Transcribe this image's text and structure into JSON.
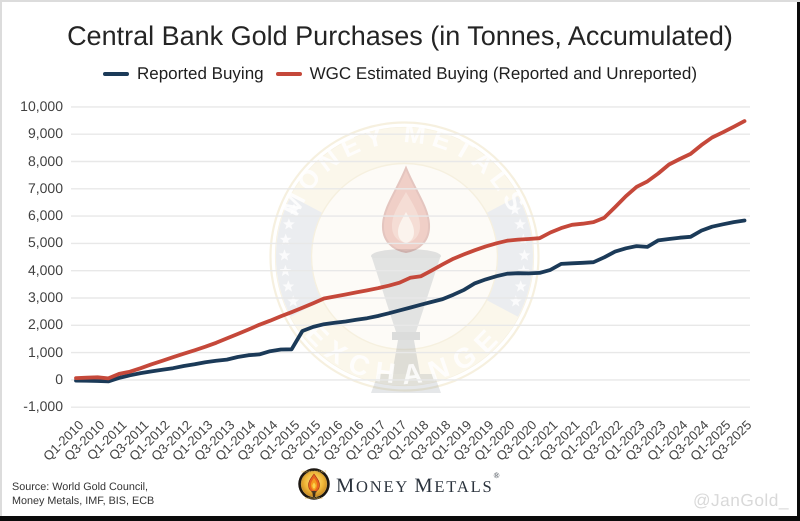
{
  "title": "Central Bank Gold Purchases (in Tonnes, Accumulated)",
  "legend": [
    {
      "label": "Reported Buying",
      "color": "#1b3a58"
    },
    {
      "label": "WGC Estimated Buying (Reported and Unreported)",
      "color": "#c5483a"
    }
  ],
  "chart_data": {
    "type": "line",
    "categories": [
      "Q1-2010",
      "Q2-2010",
      "Q3-2010",
      "Q4-2010",
      "Q1-2011",
      "Q2-2011",
      "Q3-2011",
      "Q4-2011",
      "Q1-2012",
      "Q2-2012",
      "Q3-2012",
      "Q4-2012",
      "Q1-2013",
      "Q2-2013",
      "Q3-2013",
      "Q4-2013",
      "Q1-2014",
      "Q2-2014",
      "Q3-2014",
      "Q4-2014",
      "Q1-2015",
      "Q2-2015",
      "Q3-2015",
      "Q4-2015",
      "Q1-2016",
      "Q2-2016",
      "Q3-2016",
      "Q4-2016",
      "Q1-2017",
      "Q2-2017",
      "Q3-2017",
      "Q4-2017",
      "Q1-2018",
      "Q2-2018",
      "Q3-2018",
      "Q4-2018",
      "Q1-2019",
      "Q2-2019",
      "Q3-2019",
      "Q4-2019",
      "Q1-2020",
      "Q2-2020",
      "Q3-2020",
      "Q4-2020",
      "Q1-2021",
      "Q2-2021",
      "Q3-2021",
      "Q4-2021",
      "Q1-2022",
      "Q2-2022",
      "Q3-2022",
      "Q4-2022",
      "Q1-2023",
      "Q2-2023",
      "Q3-2023",
      "Q4-2023",
      "Q1-2024",
      "Q2-2024",
      "Q3-2024",
      "Q4-2024",
      "Q1-2025",
      "Q2-2025",
      "Q3-2025"
    ],
    "tick_every": 2,
    "series": [
      {
        "name": "Reported Buying",
        "color": "#1b3a58",
        "values": [
          -25,
          -30,
          -40,
          -55,
          75,
          170,
          250,
          310,
          375,
          430,
          510,
          570,
          650,
          700,
          745,
          840,
          905,
          935,
          1050,
          1115,
          1120,
          1790,
          1940,
          2040,
          2090,
          2140,
          2200,
          2260,
          2340,
          2440,
          2545,
          2650,
          2755,
          2857,
          2960,
          3120,
          3300,
          3540,
          3680,
          3800,
          3890,
          3910,
          3900,
          3920,
          4030,
          4250,
          4270,
          4290,
          4310,
          4490,
          4700,
          4820,
          4900,
          4870,
          5110,
          5160,
          5210,
          5240,
          5470,
          5610,
          5700,
          5780,
          5840
        ]
      },
      {
        "name": "WGC Estimated Buying (Reported and Unreported)",
        "color": "#c5483a",
        "values": [
          65,
          80,
          95,
          55,
          220,
          300,
          430,
          570,
          700,
          830,
          960,
          1085,
          1215,
          1360,
          1520,
          1680,
          1845,
          2020,
          2170,
          2330,
          2480,
          2640,
          2810,
          2980,
          3055,
          3130,
          3205,
          3280,
          3360,
          3450,
          3560,
          3740,
          3800,
          4010,
          4230,
          4440,
          4600,
          4750,
          4890,
          5005,
          5100,
          5140,
          5160,
          5190,
          5400,
          5560,
          5680,
          5720,
          5780,
          5940,
          6330,
          6730,
          7075,
          7270,
          7560,
          7890,
          8090,
          8280,
          8600,
          8880,
          9070,
          9270,
          9480
        ]
      }
    ],
    "ylim": [
      -1000,
      10000
    ],
    "y_ticks": [
      -1000,
      0,
      1000,
      2000,
      3000,
      4000,
      5000,
      6000,
      7000,
      8000,
      9000,
      10000
    ],
    "grid": "horizontal",
    "legend_position": "top"
  },
  "watermark": {
    "arc_text_top": "MONEY METALS",
    "arc_text_bottom": "EXCHANGE"
  },
  "footer": {
    "source_line1": "Source: World Gold Council,",
    "source_line2": "Money Metals, IMF, BIS, ECB",
    "brand_word_parts": {
      "m1": "M",
      "oney": "ONEY",
      "sp": " ",
      "m2": "M",
      "etals": "ETALS"
    },
    "brand_reg": "®",
    "badge_ring_top": "MONEY METALS",
    "badge_ring_bottom": "EXCHANGE",
    "handle": "@JanGold_"
  }
}
